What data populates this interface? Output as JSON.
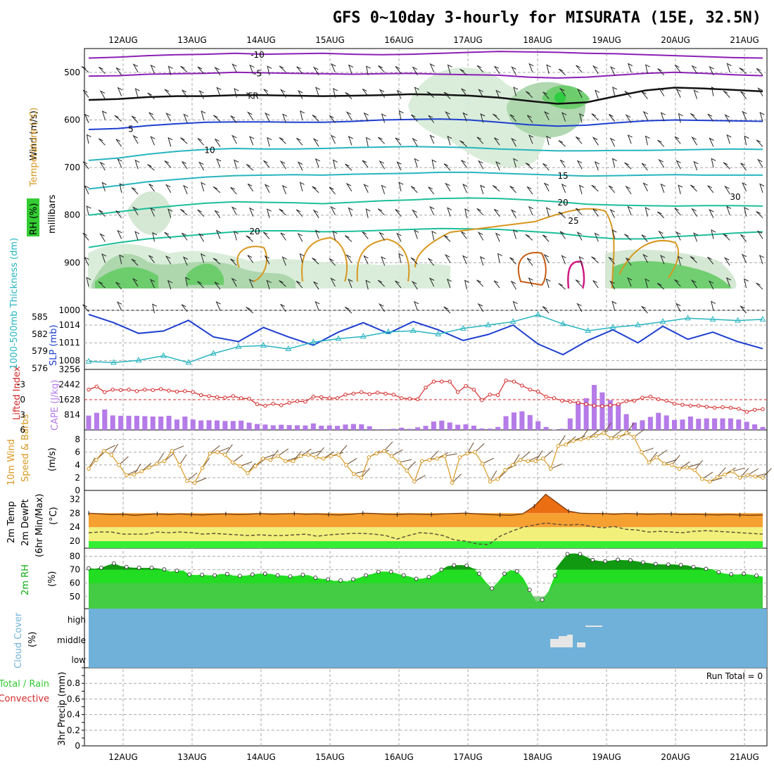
{
  "title": "GFS 0~10day 3-hourly for MISURATA (15E, 32.5N)",
  "colors": {
    "purple": "#8b1fb5",
    "blue": "#1e3fd0",
    "cyan": "#27b5c0",
    "teal": "#1dbf9a",
    "orange": "#d8971f",
    "red": "#d42a2a",
    "magenta": "#d01a85",
    "green": "#33cc33",
    "sky": "#6fb1d9",
    "sat": "#d9d9d9"
  },
  "chart_data": [
    {
      "type": "area",
      "panel": "sounding",
      "days": [
        "12AUG",
        "13AUG",
        "14AUG",
        "15AUG",
        "16AUG",
        "17AUG",
        "18AUG",
        "19AUG",
        "20AUG",
        "21AUG"
      ],
      "ylabel": "millibars",
      "ylim": [
        1000,
        450
      ],
      "yticks": [
        "500",
        "600",
        "700",
        "800",
        "900",
        "1000"
      ],
      "labels": {
        "rh": "RH (%)",
        "temperature": "Temperature (°C)",
        "wind": "Wind (m/s)"
      },
      "isotherms": [
        {
          "name": "-10",
          "label": "-10",
          "color": "purple",
          "p": [
            470,
            468,
            465,
            463,
            462,
            460,
            462,
            461,
            460,
            462,
            463,
            462,
            460,
            458,
            456,
            457,
            458,
            460,
            461,
            463,
            465,
            467,
            469,
            470
          ]
        },
        {
          "name": "-5",
          "label": "-5",
          "color": "purple",
          "p": [
            508,
            507,
            504,
            503,
            502,
            500,
            501,
            502,
            503,
            504,
            503,
            502,
            504,
            505,
            506,
            510,
            512,
            510,
            506,
            502,
            500,
            502,
            505,
            507
          ]
        },
        {
          "name": "FR",
          "label": "FR",
          "color": "black",
          "p": [
            558,
            556,
            552,
            550,
            550,
            548,
            548,
            549,
            550,
            549,
            548,
            546,
            547,
            549,
            553,
            560,
            566,
            563,
            550,
            538,
            532,
            534,
            537,
            540
          ]
        },
        {
          "name": "5",
          "label": "5",
          "color": "blue",
          "p": [
            620,
            618,
            612,
            608,
            605,
            604,
            604,
            605,
            605,
            603,
            600,
            599,
            598,
            600,
            605,
            610,
            613,
            611,
            606,
            602,
            600,
            601,
            602,
            603
          ]
        },
        {
          "name": "10",
          "label": "10",
          "color": "cyan",
          "p": [
            685,
            680,
            672,
            666,
            662,
            660,
            661,
            661,
            660,
            658,
            657,
            656,
            657,
            658,
            661,
            663,
            665,
            665,
            664,
            664,
            663,
            662,
            661,
            662
          ]
        },
        {
          "name": "15",
          "label": "15",
          "color": "cyan",
          "p": [
            745,
            738,
            730,
            725,
            720,
            717,
            716,
            715,
            716,
            714,
            713,
            712,
            710,
            710,
            712,
            714,
            716,
            718,
            717,
            716,
            715,
            716,
            716,
            716
          ]
        },
        {
          "name": "20",
          "label": "20",
          "color": "teal",
          "p": [
            800,
            793,
            786,
            780,
            775,
            772,
            773,
            774,
            776,
            773,
            770,
            768,
            765,
            764,
            765,
            768,
            772,
            777,
            779,
            780,
            781,
            780,
            780,
            781
          ]
        },
        {
          "name": "25",
          "label": "25",
          "color": "orange",
          "p": []
        },
        {
          "name": "20",
          "label": "20",
          "color": "teal",
          "p": [
            868,
            858,
            850,
            845,
            840,
            835,
            833,
            833,
            835,
            834,
            832,
            830,
            828,
            829,
            830,
            834,
            838,
            845,
            850,
            850,
            845,
            842,
            838,
            835
          ]
        }
      ],
      "contour_labels": [
        "-10",
        "-5",
        "FR",
        "5",
        "10",
        "15",
        "20",
        "25",
        "20",
        "30"
      ]
    },
    {
      "type": "line",
      "panel": "slp_thickness",
      "series": [
        {
          "name": "SLP (mb)",
          "color": "blue",
          "values": [
            1015.8,
            1014.4,
            1012.6,
            1013.0,
            1014.8,
            1012.0,
            1011.2,
            1013.6,
            1012.0,
            1010.6,
            1012.8,
            1014.4,
            1012.6,
            1014.6,
            1013.2,
            1011.4,
            1012.4,
            1014.0,
            1010.8,
            1009.0,
            1011.4,
            1013.2,
            1011.0,
            1013.8,
            1011.6,
            1012.8,
            1011.2,
            1010.0
          ]
        },
        {
          "name": "1000-500mb Thickness (dm)",
          "color": "cyan",
          "values": [
            577.2,
            577.0,
            577.4,
            578.2,
            577.0,
            578.6,
            579.8,
            580.0,
            579.4,
            580.6,
            581.2,
            581.6,
            582.4,
            582.6,
            582.0,
            583.0,
            583.6,
            584.2,
            585.4,
            583.8,
            582.6,
            583.2,
            583.6,
            584.2,
            584.8,
            584.6,
            584.4,
            584.6
          ]
        }
      ],
      "left_ticks": [
        "1008",
        "1011",
        "1014"
      ],
      "right_ticks": [
        "576",
        "579",
        "582",
        "585"
      ],
      "labels": {
        "thickness": "1000-500mb Thickness (dm)",
        "slp": "SLP (mb)"
      }
    },
    {
      "type": "bar",
      "panel": "cape_li",
      "cape_ticks": [
        "814",
        "1628",
        "2442",
        "3256"
      ],
      "li_ticks": [
        "-3",
        "0",
        "3",
        "6"
      ],
      "labels": {
        "li": "Lifted Index",
        "cape": "CAPE (J/kg)"
      },
      "cape": [
        770,
        920,
        1100,
        780,
        760,
        760,
        760,
        740,
        720,
        720,
        760,
        560,
        720,
        560,
        510,
        520,
        510,
        480,
        480,
        500,
        390,
        320,
        290,
        250,
        280,
        260,
        250,
        240,
        350,
        230,
        240,
        220,
        290,
        320,
        300,
        200,
        40,
        40,
        60,
        120,
        60,
        140,
        220,
        450,
        500,
        400,
        280,
        300,
        230,
        80,
        70,
        160,
        740,
        940,
        1000,
        800,
        470,
        160,
        20,
        60,
        620,
        1530,
        1710,
        2420,
        2020,
        1600,
        1400,
        850,
        400,
        520,
        700,
        920,
        780,
        540,
        560,
        720,
        600,
        620,
        620,
        620,
        620,
        560,
        440,
        300,
        160
      ],
      "li": [
        -2.0,
        -2.6,
        -1.5,
        -2.0,
        -1.9,
        -2.0,
        -1.7,
        -2.0,
        -1.9,
        -2.1,
        -1.8,
        -1.6,
        -1.7,
        -1.5,
        -0.9,
        -0.7,
        -0.5,
        -0.4,
        -0.7,
        -0.3,
        -0.2,
        0.9,
        1.2,
        0.8,
        1.1,
        0.6,
        0.3,
        0.4,
        -0.6,
        -0.5,
        -0.3,
        -0.3,
        -1.0,
        -1.2,
        -1.5,
        -1.1,
        -1.4,
        -1.2,
        -1.0,
        -0.3,
        -0.2,
        -0.1,
        -2.4,
        -3.6,
        -3.6,
        -3.6,
        -1.5,
        -2.7,
        -2.0,
        0.1,
        -1.0,
        -0.9,
        -3.8,
        -3.6,
        -2.8,
        -2.0,
        -1.6,
        -0.6,
        -0.3,
        0.2,
        0.4,
        0.6,
        0.9,
        1.2,
        1.3,
        1.1,
        0.9,
        0.3,
        0.2,
        -0.4,
        -0.6,
        -0.1,
        0.2,
        0.8,
        1.0,
        1.2,
        1.2,
        1.4,
        1.6,
        1.5,
        1.6,
        1.8,
        2.4,
        2.0,
        1.9
      ]
    },
    {
      "type": "line",
      "panel": "wind10m",
      "yticks": [
        "0",
        "2",
        "4",
        "6",
        "8"
      ],
      "labels": {
        "wind": "10m Wind",
        "speedbarbs": "Speed & Barbs",
        "unit": "(m/s)"
      },
      "speed": [
        3.4,
        4.8,
        6.2,
        5.6,
        4.0,
        2.4,
        2.5,
        3.0,
        3.6,
        4.2,
        4.6,
        6.2,
        4.0,
        1.5,
        1.2,
        3.5,
        5.8,
        6.0,
        5.6,
        4.4,
        3.8,
        2.7,
        3.8,
        5.0,
        4.8,
        5.4,
        4.6,
        4.6,
        5.4,
        5.6,
        5.2,
        5.0,
        5.4,
        5.6,
        4.0,
        2.6,
        2.0,
        5.2,
        5.8,
        6.2,
        5.4,
        4.4,
        3.1,
        1.4,
        4.6,
        4.8,
        5.0,
        5.4,
        1.2,
        5.2,
        5.8,
        6.0,
        4.2,
        1.4,
        1.8,
        3.2,
        4.0,
        4.8,
        4.6,
        4.6,
        5.0,
        3.4,
        7.0,
        7.2,
        7.8,
        8.0,
        8.2,
        8.6,
        9.0,
        8.2,
        8.4,
        9.0,
        8.4,
        6.0,
        4.4,
        5.2,
        4.2,
        4.0,
        3.4,
        3.6,
        3.2,
        1.8,
        1.4,
        2.1,
        2.5,
        3.0,
        2.0,
        2.4,
        2.2,
        2.0
      ]
    },
    {
      "type": "area",
      "panel": "temp2m",
      "yticks": [
        "20",
        "24",
        "28",
        "32"
      ],
      "labels": {
        "temp": "2m Temp",
        "dewpt": "2m DewPt",
        "minmax": "(6hr Min/Max)",
        "unit": "(°C)"
      },
      "temp": [
        28.0,
        27.8,
        27.6,
        27.7,
        27.4,
        27.6,
        27.8,
        27.6,
        27.8,
        27.6,
        27.5,
        27.7,
        27.8,
        27.6,
        27.7,
        27.9,
        27.7,
        27.8,
        27.9,
        27.7,
        27.8,
        27.6,
        27.5,
        27.7,
        28.0,
        27.9,
        27.7,
        27.6,
        27.8,
        27.7,
        27.6,
        27.8,
        27.9,
        28.0,
        27.8,
        27.6,
        27.5,
        27.4,
        27.8,
        30.0,
        33.4,
        31.0,
        28.6,
        28.0,
        27.9,
        27.9,
        27.7,
        27.9,
        27.8,
        27.7,
        27.8,
        27.8,
        27.6,
        27.7,
        27.6,
        27.5,
        27.6,
        27.5,
        27.4,
        27.5
      ],
      "dewpt": [
        22.4,
        22.6,
        22.6,
        22.0,
        22.0,
        22.0,
        22.6,
        22.4,
        22.6,
        22.4,
        22.0,
        22.2,
        22.0,
        21.8,
        21.6,
        21.8,
        21.6,
        21.6,
        21.8,
        22.0,
        21.4,
        21.8,
        22.0,
        22.2,
        22.2,
        22.0,
        21.6,
        20.6,
        21.6,
        22.4,
        22.2,
        21.6,
        20.4,
        20.0,
        19.2,
        19.0,
        21.4,
        22.8,
        24.0,
        24.6,
        25.2,
        24.8,
        24.6,
        24.8,
        24.2,
        23.8,
        24.2,
        23.4,
        23.2,
        22.6,
        22.8,
        22.6,
        22.4,
        22.8,
        23.0,
        22.8,
        22.6,
        22.4,
        22.2,
        22.0
      ]
    },
    {
      "type": "area",
      "panel": "rh2m",
      "yticks": [
        "50",
        "60",
        "70",
        "80"
      ],
      "labels": {
        "rh": "2m RH",
        "unit": "(%)"
      },
      "rh": [
        71.0,
        70.6,
        71.4,
        73.2,
        74.6,
        72.8,
        72.0,
        71.4,
        71.4,
        71.2,
        71.4,
        70.8,
        70.2,
        68.6,
        69.2,
        69.4,
        66.4,
        66.0,
        66.2,
        65.8,
        65.8,
        66.8,
        66.8,
        65.6,
        65.4,
        65.6,
        66.4,
        67.0,
        67.0,
        66.8,
        65.8,
        65.6,
        65.0,
        65.4,
        66.2,
        65.8,
        64.0,
        63.2,
        62.8,
        61.6,
        62.0,
        61.2,
        62.8,
        64.0,
        65.8,
        66.8,
        68.4,
        68.6,
        68.4,
        67.0,
        65.8,
        64.8,
        63.2,
        63.4,
        64.6,
        66.6,
        70.0,
        72.6,
        73.2,
        73.4,
        73.0,
        71.0,
        67.0,
        61.0,
        56.0,
        61.0,
        67.0,
        69.6,
        68.8,
        63.6,
        55.0,
        46.0,
        47.6,
        54.0,
        65.6,
        76.0,
        81.6,
        82.0,
        81.6,
        79.6,
        77.2,
        76.4,
        76.2,
        76.8,
        77.4,
        77.0,
        77.0,
        76.2,
        75.4,
        74.8,
        74.2,
        73.8,
        73.8,
        73.8,
        73.4,
        73.2,
        72.0,
        71.6,
        70.6,
        70.2,
        68.2,
        67.0,
        66.6,
        66.4,
        67.0,
        66.2,
        65.6,
        64.8
      ]
    },
    {
      "type": "heatmap",
      "panel": "cloud",
      "yticks": [
        "low",
        "middle",
        "high"
      ],
      "labels": {
        "cloud": "Cloud Cover",
        "unit": "(%)"
      }
    },
    {
      "type": "bar",
      "panel": "precip",
      "yticks": [
        "0",
        "0.2",
        "0.4",
        "0.6",
        "0.8"
      ],
      "run_total": "Run Total = 0",
      "labels": {
        "totalrain": "Total / Rain",
        "convective": "Convective",
        "precip": "3hr Precip (mm)"
      },
      "values": []
    }
  ]
}
